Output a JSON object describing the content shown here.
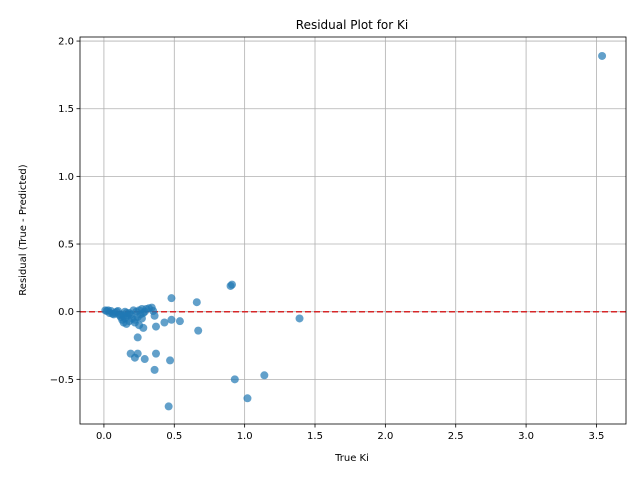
{
  "chart_data": {
    "type": "scatter",
    "title": "Residual Plot for Ki",
    "xlabel": "True Ki",
    "ylabel": "Residual (True - Predicted)",
    "xlim": [
      -0.17,
      3.71
    ],
    "ylim": [
      -0.83,
      2.03
    ],
    "xticks": [
      0.0,
      0.5,
      1.0,
      1.5,
      2.0,
      2.5,
      3.0,
      3.5
    ],
    "xtick_labels": [
      "0.0",
      "0.5",
      "1.0",
      "1.5",
      "2.0",
      "2.5",
      "3.0",
      "3.5"
    ],
    "yticks": [
      -0.5,
      0.0,
      0.5,
      1.0,
      1.5,
      2.0
    ],
    "ytick_labels": [
      "−0.5",
      "0.0",
      "0.5",
      "1.0",
      "1.5",
      "2.0"
    ],
    "grid": true,
    "reference_line": {
      "y": 0,
      "style": "dashed",
      "color": "#d62728"
    },
    "marker_color": "#1f77b4",
    "marker_alpha": 0.7,
    "points": [
      {
        "x": 0.01,
        "y": 0.01
      },
      {
        "x": 0.02,
        "y": 0.005
      },
      {
        "x": 0.03,
        "y": 0.01
      },
      {
        "x": 0.04,
        "y": -0.01
      },
      {
        "x": 0.05,
        "y": 0.005
      },
      {
        "x": 0.06,
        "y": -0.015
      },
      {
        "x": 0.07,
        "y": -0.02
      },
      {
        "x": 0.08,
        "y": -0.01
      },
      {
        "x": 0.09,
        "y": 0.0
      },
      {
        "x": 0.1,
        "y": 0.005
      },
      {
        "x": 0.11,
        "y": -0.025
      },
      {
        "x": 0.12,
        "y": -0.04
      },
      {
        "x": 0.13,
        "y": -0.06
      },
      {
        "x": 0.14,
        "y": -0.08
      },
      {
        "x": 0.15,
        "y": -0.05
      },
      {
        "x": 0.16,
        "y": -0.09
      },
      {
        "x": 0.17,
        "y": -0.03
      },
      {
        "x": 0.18,
        "y": -0.07
      },
      {
        "x": 0.19,
        "y": -0.02
      },
      {
        "x": 0.2,
        "y": -0.05
      },
      {
        "x": 0.21,
        "y": 0.01
      },
      {
        "x": 0.22,
        "y": -0.06
      },
      {
        "x": 0.23,
        "y": 0.0
      },
      {
        "x": 0.24,
        "y": -0.04
      },
      {
        "x": 0.25,
        "y": 0.01
      },
      {
        "x": 0.26,
        "y": -0.02
      },
      {
        "x": 0.27,
        "y": 0.02
      },
      {
        "x": 0.28,
        "y": -0.01
      },
      {
        "x": 0.3,
        "y": 0.02
      },
      {
        "x": 0.32,
        "y": 0.025
      },
      {
        "x": 0.34,
        "y": 0.03
      },
      {
        "x": 0.35,
        "y": 0.005
      },
      {
        "x": 0.36,
        "y": -0.03
      },
      {
        "x": 0.15,
        "y": 0.0
      },
      {
        "x": 0.18,
        "y": -0.01
      },
      {
        "x": 0.22,
        "y": -0.08
      },
      {
        "x": 0.25,
        "y": -0.1
      },
      {
        "x": 0.27,
        "y": -0.05
      },
      {
        "x": 0.29,
        "y": 0.0
      },
      {
        "x": 0.12,
        "y": -0.02
      },
      {
        "x": 0.14,
        "y": -0.03
      },
      {
        "x": 0.16,
        "y": -0.01
      },
      {
        "x": 0.28,
        "y": -0.12
      },
      {
        "x": 0.37,
        "y": -0.11
      },
      {
        "x": 0.43,
        "y": -0.08
      },
      {
        "x": 0.48,
        "y": -0.06
      },
      {
        "x": 0.54,
        "y": -0.07
      },
      {
        "x": 0.48,
        "y": 0.1
      },
      {
        "x": 0.66,
        "y": 0.07
      },
      {
        "x": 0.67,
        "y": -0.14
      },
      {
        "x": 0.24,
        "y": -0.19
      },
      {
        "x": 0.19,
        "y": -0.31
      },
      {
        "x": 0.24,
        "y": -0.31
      },
      {
        "x": 0.22,
        "y": -0.34
      },
      {
        "x": 0.29,
        "y": -0.35
      },
      {
        "x": 0.37,
        "y": -0.31
      },
      {
        "x": 0.47,
        "y": -0.36
      },
      {
        "x": 0.36,
        "y": -0.43
      },
      {
        "x": 0.46,
        "y": -0.7
      },
      {
        "x": 0.9,
        "y": 0.19
      },
      {
        "x": 0.91,
        "y": 0.2
      },
      {
        "x": 0.93,
        "y": -0.5
      },
      {
        "x": 1.02,
        "y": -0.64
      },
      {
        "x": 1.14,
        "y": -0.47
      },
      {
        "x": 1.39,
        "y": -0.05
      },
      {
        "x": 3.54,
        "y": 1.89
      }
    ]
  }
}
